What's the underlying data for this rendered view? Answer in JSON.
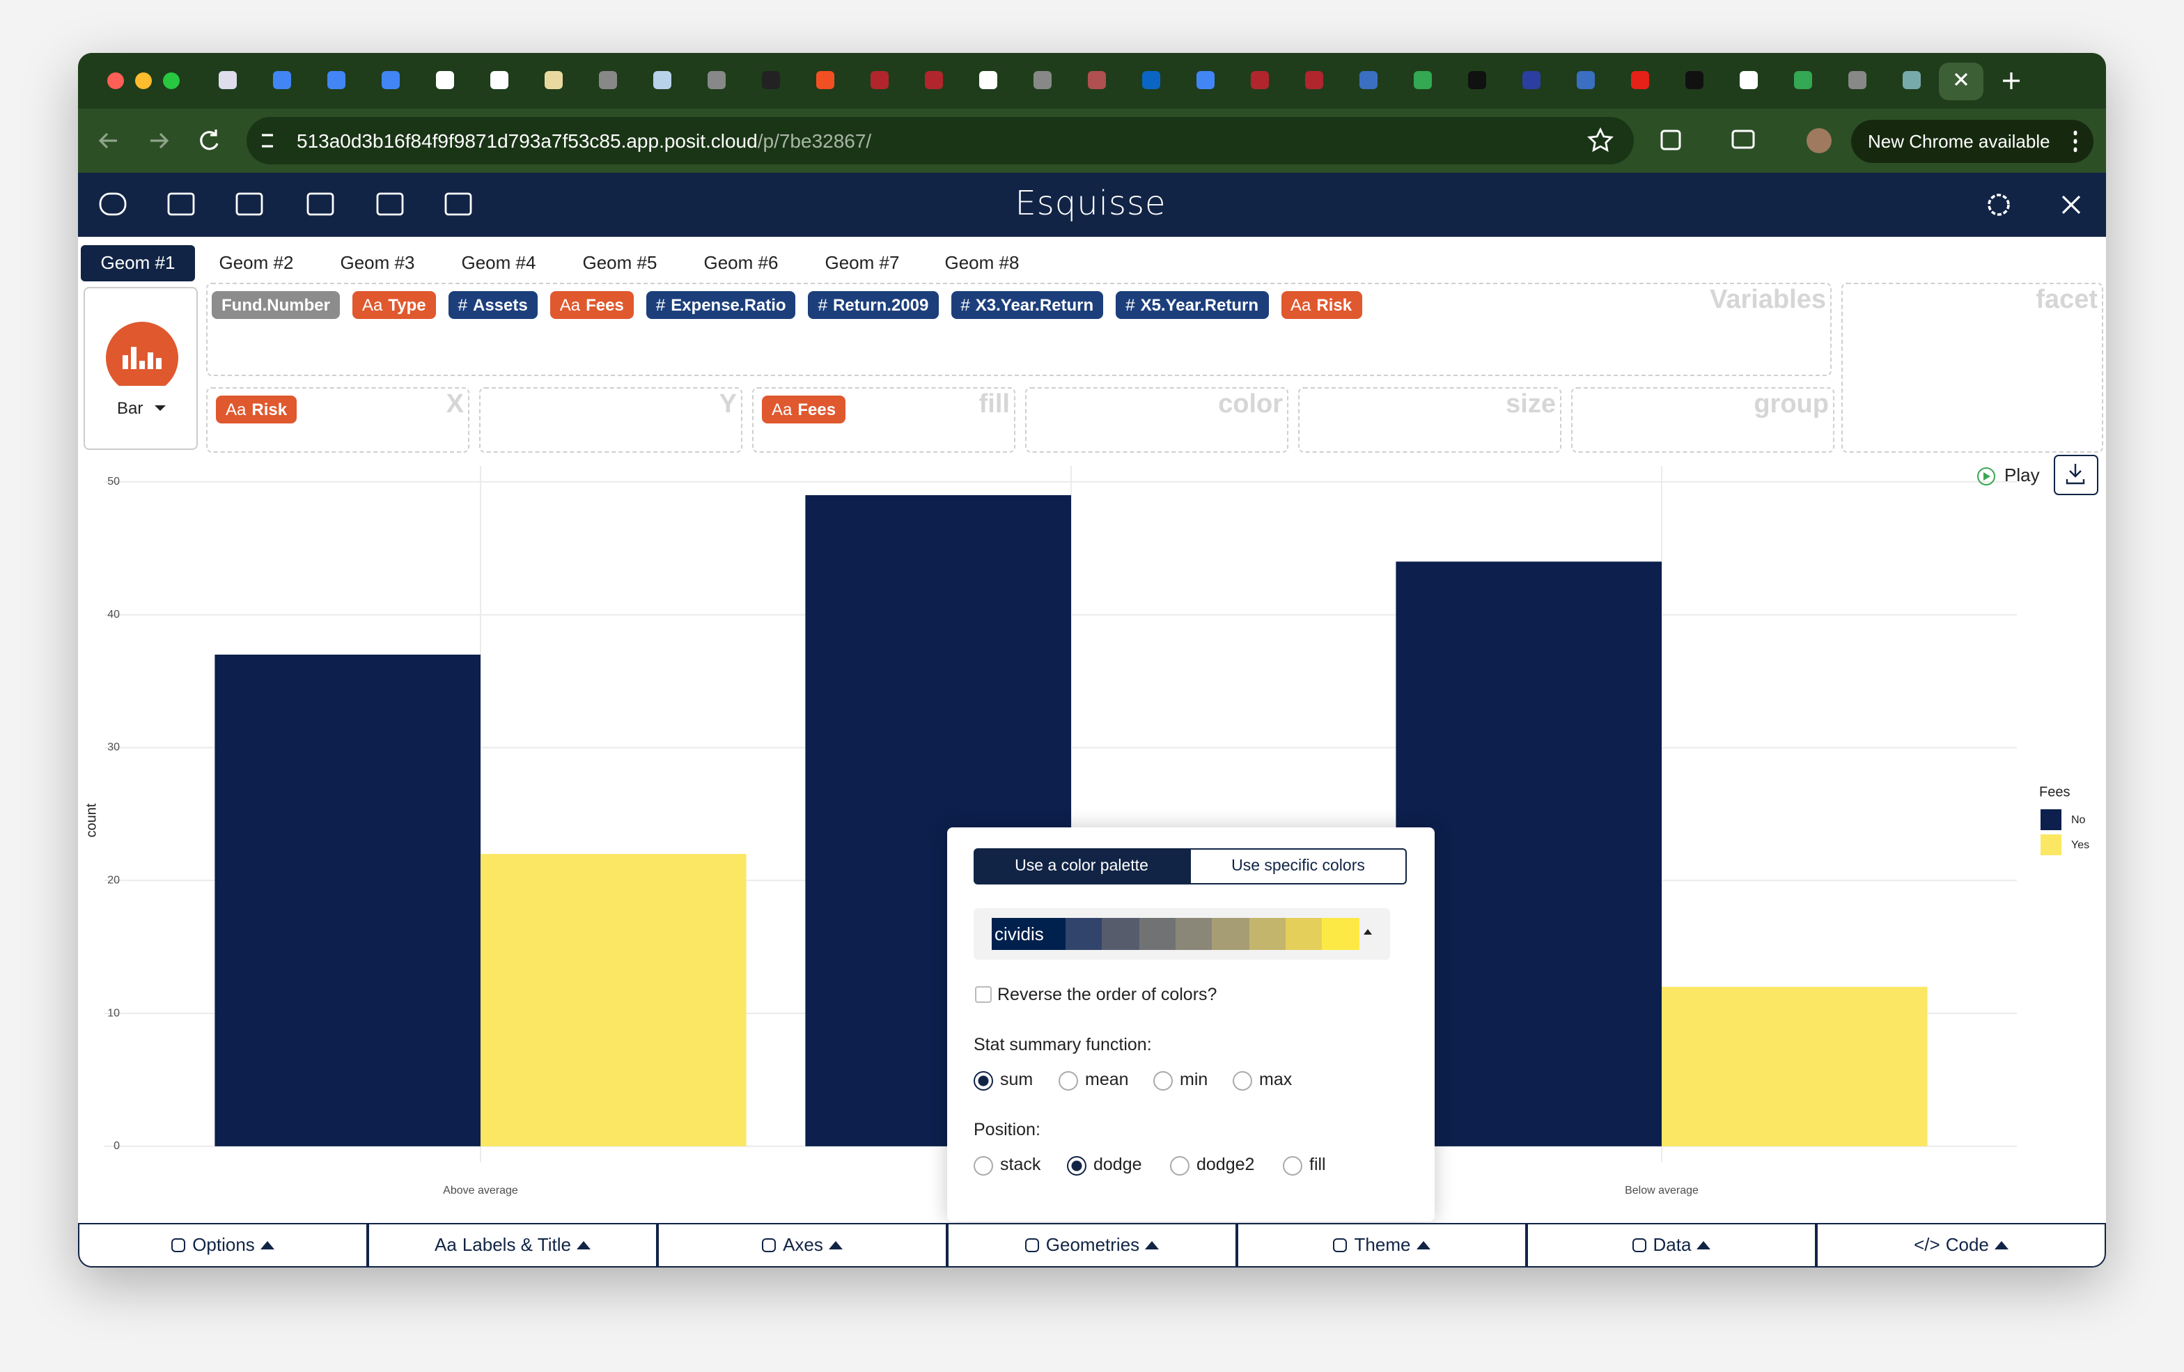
{
  "browser": {
    "url_domain": "513a0d3b16f84f9f9871d793a7f53c85.app.posit.cloud",
    "url_path": "/p/7be32867/",
    "update_button": "New Chrome available"
  },
  "app": {
    "title": "Esquisse",
    "geom_tabs": [
      "Geom #1",
      "Geom #2",
      "Geom #3",
      "Geom #4",
      "Geom #5",
      "Geom #6",
      "Geom #7",
      "Geom #8"
    ],
    "active_tab": 0,
    "geom_type": "Bar",
    "variables_label": "Variables",
    "facet_label": "facet",
    "variables": [
      {
        "name": "Fund.Number",
        "color": "#8c8c8c"
      },
      {
        "icon": "Aa",
        "name": "Type",
        "color": "#e0582e"
      },
      {
        "icon": "#",
        "name": "Assets",
        "color": "#1c3f7c"
      },
      {
        "icon": "Aa",
        "name": "Fees",
        "color": "#e0582e"
      },
      {
        "icon": "#",
        "name": "Expense.Ratio",
        "color": "#1c3f7c"
      },
      {
        "icon": "#",
        "name": "Return.2009",
        "color": "#1c3f7c"
      },
      {
        "icon": "#",
        "name": "X3.Year.Return",
        "color": "#1c3f7c"
      },
      {
        "icon": "#",
        "name": "X5.Year.Return",
        "color": "#1c3f7c"
      },
      {
        "icon": "Aa",
        "name": "Risk",
        "color": "#e0582e"
      }
    ],
    "drop_zones": [
      {
        "label": "X",
        "items": [
          {
            "icon": "Aa",
            "name": "Risk",
            "color": "#e0582e"
          }
        ]
      },
      {
        "label": "Y",
        "items": []
      },
      {
        "label": "fill",
        "items": [
          {
            "icon": "Aa",
            "name": "Fees",
            "color": "#e0582e"
          }
        ]
      },
      {
        "label": "color",
        "items": []
      },
      {
        "label": "size",
        "items": []
      },
      {
        "label": "group",
        "items": []
      }
    ],
    "play": "Play"
  },
  "chart": {
    "type": "bar",
    "ylabel": "count",
    "categories": [
      "Above average",
      null,
      "Below average"
    ],
    "series": [
      {
        "name": "No",
        "color": "#0c1f4d",
        "values": [
          37,
          49,
          44
        ]
      },
      {
        "name": "Yes",
        "color": "#fbe764",
        "values": [
          22,
          null,
          12
        ]
      }
    ],
    "legend_title": "Fees",
    "ylim": [
      -1.2,
      51.2
    ],
    "yticks": [
      0,
      10,
      20,
      30,
      40,
      50
    ],
    "grid": true
  },
  "popup": {
    "palette_tabs": [
      "Use a color palette",
      "Use specific colors"
    ],
    "palette_active": 0,
    "palette": "cividis",
    "palette_colors": [
      "#31446b",
      "#575c6d",
      "#717273",
      "#8a8779",
      "#a69d75",
      "#c4b56c",
      "#e4cf5b",
      "#fde945"
    ],
    "reverse_label": "Reverse the order of colors?",
    "stat_label": "Stat summary function:",
    "stat_options": [
      "sum",
      "mean",
      "min",
      "max"
    ],
    "stat_selected": 0,
    "position_label": "Position:",
    "position_options": [
      "stack",
      "dodge",
      "dodge2",
      "fill"
    ],
    "position_selected": 1
  },
  "bottom_menu": [
    {
      "label": "Options"
    },
    {
      "icon": "Aa",
      "label": "Labels & Title"
    },
    {
      "label": "Axes"
    },
    {
      "label": "Geometries"
    },
    {
      "label": "Theme"
    },
    {
      "label": "Data"
    },
    {
      "icon": "</>",
      "label": "Code"
    }
  ]
}
